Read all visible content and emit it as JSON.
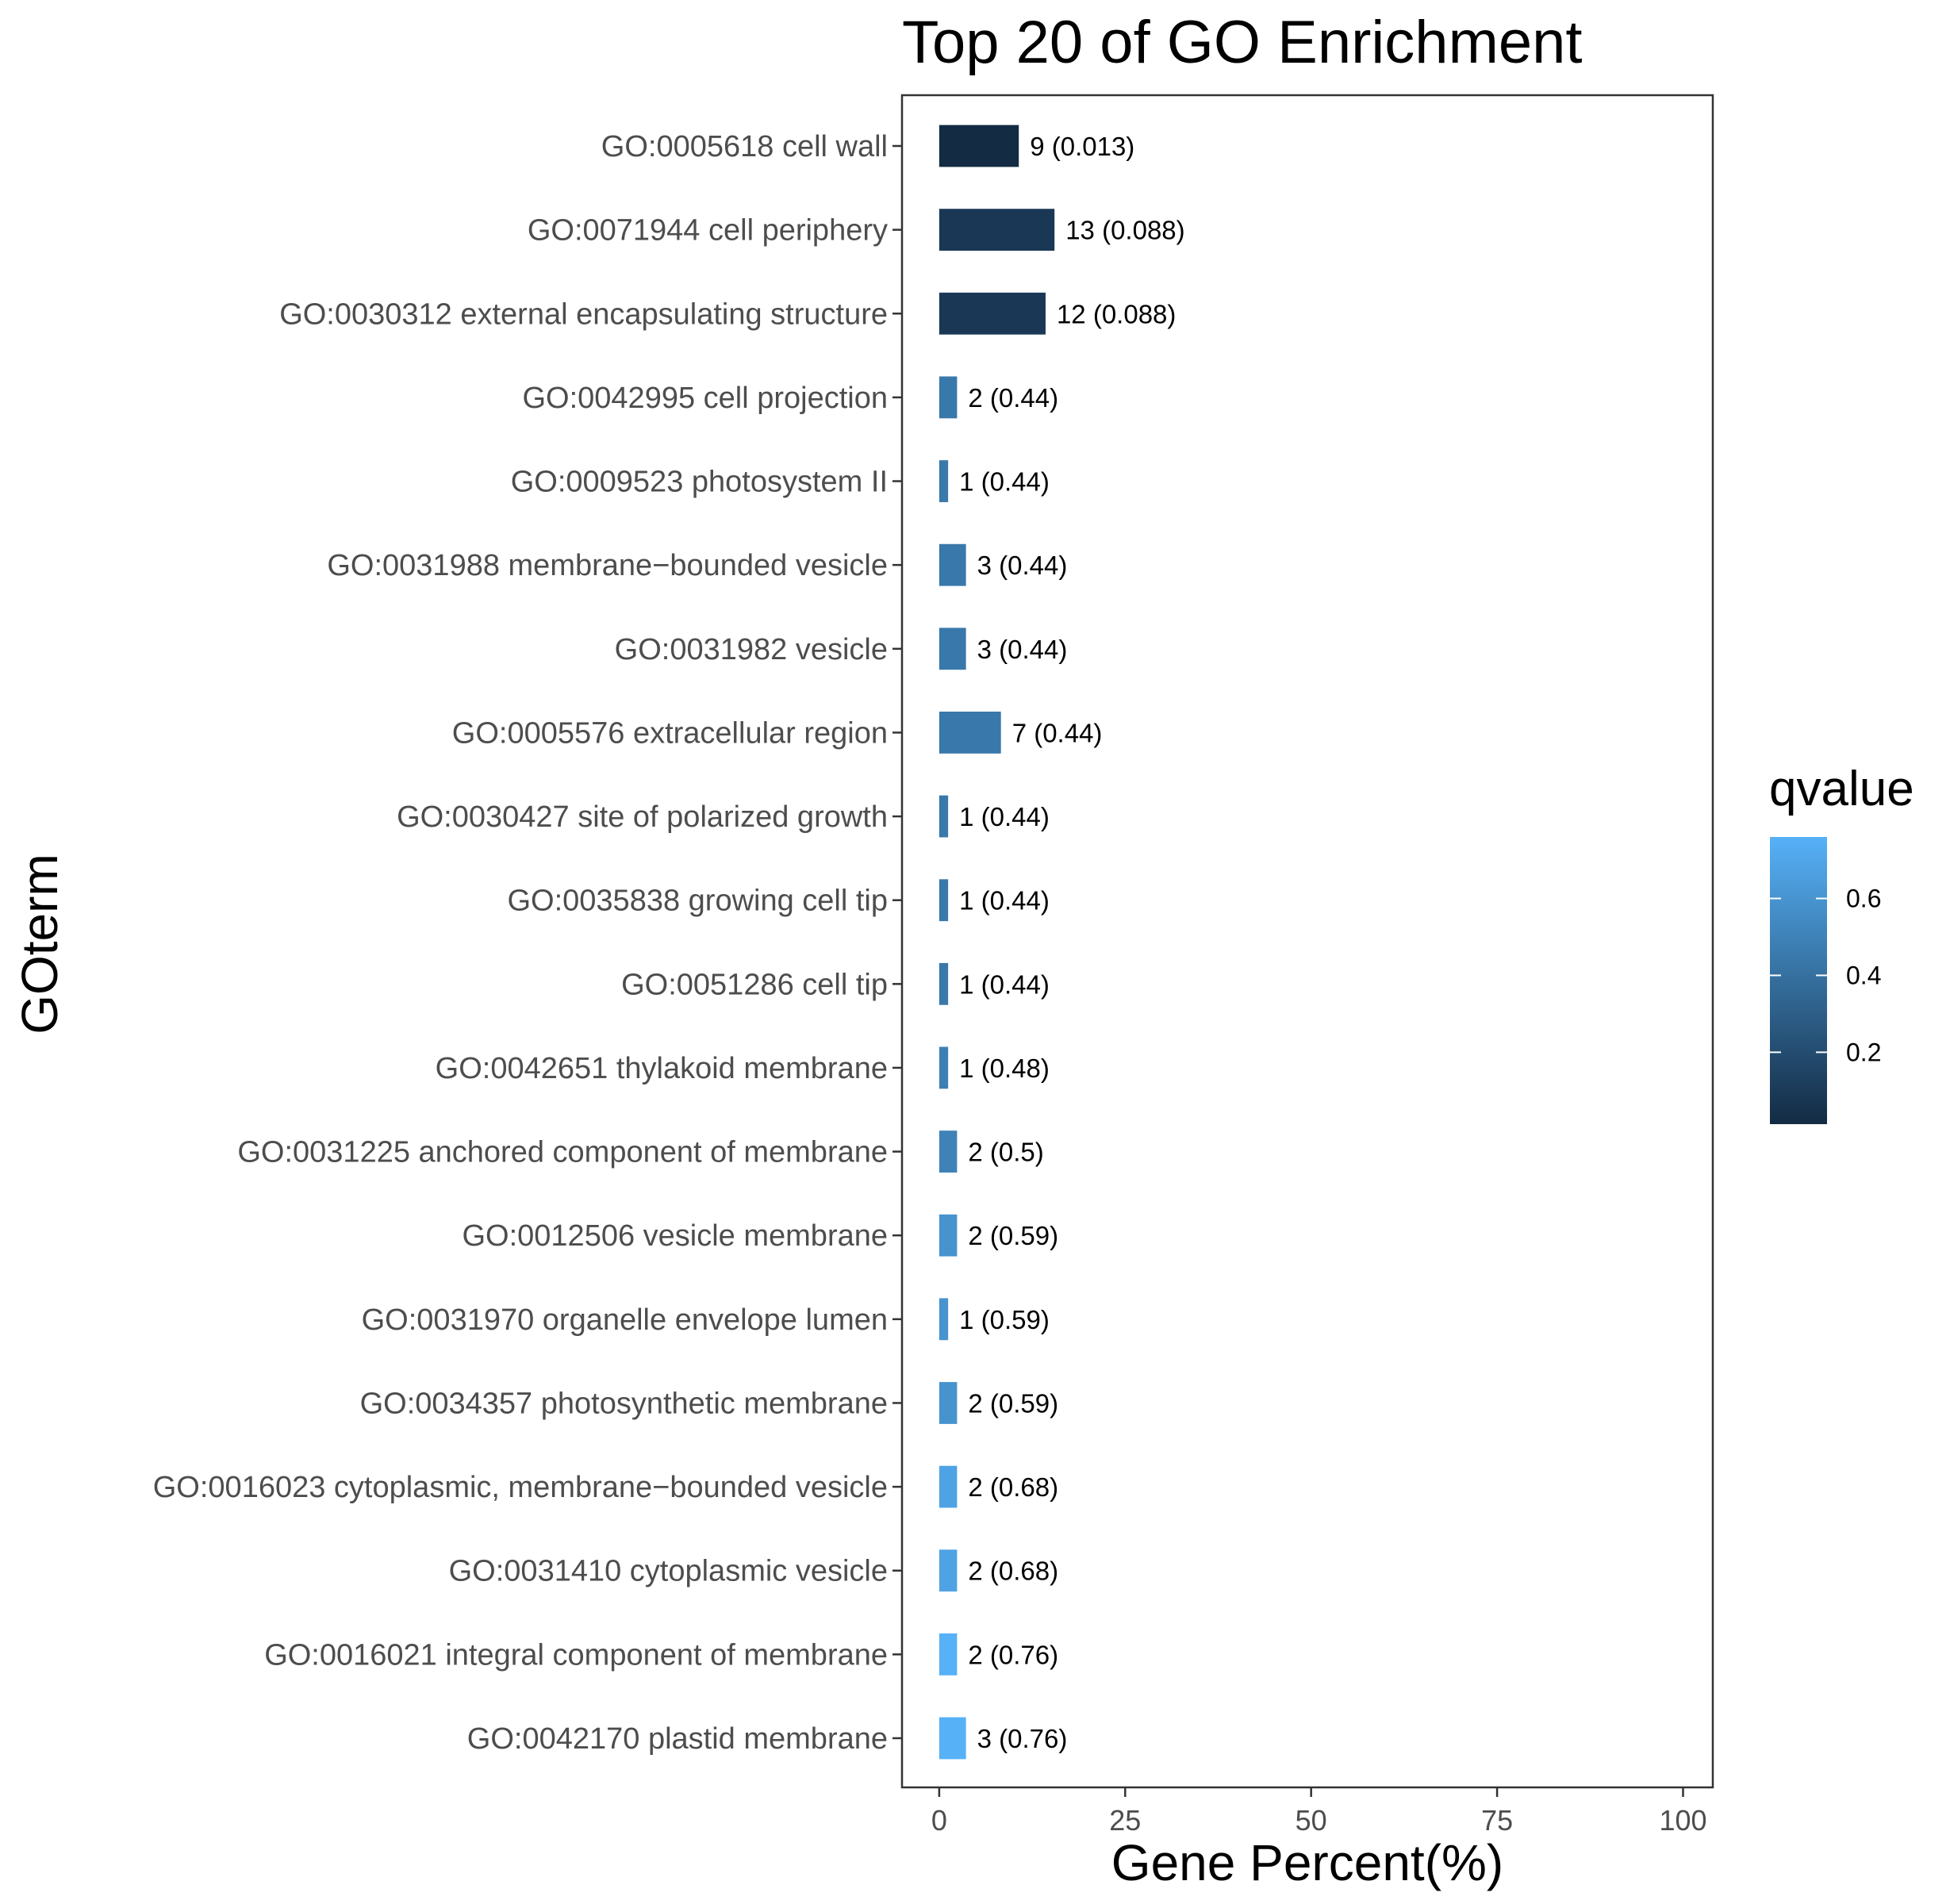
{
  "chart_data": {
    "type": "bar",
    "orientation": "horizontal",
    "title": "Top 20 of GO Enrichment",
    "xlabel": "Gene Percent(%)",
    "ylabel": "GOterm",
    "xlim": [
      -5,
      104
    ],
    "xticks": [
      0,
      25,
      50,
      75,
      100
    ],
    "grid": false,
    "categories": [
      "GO:0005618 cell wall",
      "GO:0071944 cell periphery",
      "GO:0030312 external encapsulating structure",
      "GO:0042995 cell projection",
      "GO:0009523 photosystem II",
      "GO:0031988 membrane−bounded vesicle",
      "GO:0031982 vesicle",
      "GO:0005576 extracellular region",
      "GO:0030427 site of polarized growth",
      "GO:0035838 growing cell tip",
      "GO:0051286 cell tip",
      "GO:0042651 thylakoid membrane",
      "GO:0031225 anchored component of membrane",
      "GO:0012506 vesicle membrane",
      "GO:0031970 organelle envelope lumen",
      "GO:0034357 photosynthetic membrane",
      "GO:0016023 cytoplasmic, membrane−bounded vesicle",
      "GO:0031410 cytoplasmic vesicle",
      "GO:0016021 integral component of membrane",
      "GO:0042170 plastid membrane"
    ],
    "values": [
      10.7,
      15.5,
      14.3,
      2.4,
      1.2,
      3.6,
      3.6,
      8.3,
      1.2,
      1.2,
      1.2,
      1.2,
      2.4,
      2.4,
      1.2,
      2.4,
      2.4,
      2.4,
      2.4,
      3.6
    ],
    "qvalues": [
      0.013,
      0.088,
      0.088,
      0.44,
      0.44,
      0.44,
      0.44,
      0.44,
      0.44,
      0.44,
      0.44,
      0.48,
      0.5,
      0.59,
      0.59,
      0.59,
      0.68,
      0.68,
      0.76,
      0.76
    ],
    "data_labels": [
      "9 (0.013)",
      "13 (0.088)",
      "12 (0.088)",
      "2 (0.44)",
      "1 (0.44)",
      "3 (0.44)",
      "3 (0.44)",
      "7 (0.44)",
      "1 (0.44)",
      "1 (0.44)",
      "1 (0.44)",
      "1 (0.48)",
      "2 (0.5)",
      "2 (0.59)",
      "1 (0.59)",
      "2 (0.59)",
      "2 (0.68)",
      "2 (0.68)",
      "2 (0.76)",
      "3 (0.76)"
    ],
    "legend": {
      "title": "qvalue",
      "position": "right",
      "colormap": [
        "#132B43",
        "#56B1F7"
      ],
      "range": [
        0.013,
        0.76
      ],
      "ticks": [
        0.2,
        0.4,
        0.6
      ],
      "tick_labels": [
        "0.2",
        "0.4",
        "0.6"
      ]
    }
  }
}
